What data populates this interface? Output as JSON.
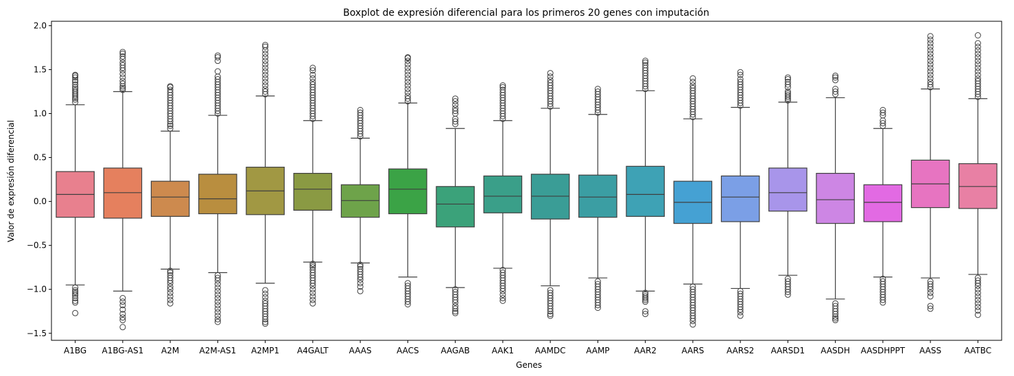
{
  "chart_data": {
    "type": "boxplot",
    "title": "Boxplot de expresión diferencial para los primeros 20 genes con imputación",
    "xlabel": "Genes",
    "ylabel": "Valor de expresión diferencial",
    "ylim": [
      -1.58,
      2.05
    ],
    "yticks": [
      -1.5,
      -1.0,
      -0.5,
      0.0,
      0.5,
      1.0,
      1.5,
      2.0
    ],
    "ytick_labels": [
      "−1.5",
      "−1.0",
      "−0.5",
      "0.0",
      "0.5",
      "1.0",
      "1.5",
      "2.0"
    ],
    "grid": false,
    "legend": "none",
    "categories": [
      "A1BG",
      "A1BG-AS1",
      "A2M",
      "A2M-AS1",
      "A2MP1",
      "A4GALT",
      "AAAS",
      "AACS",
      "AAGAB",
      "AAK1",
      "AAMDC",
      "AAMP",
      "AAR2",
      "AARS",
      "AARS2",
      "AARSD1",
      "AASDH",
      "AASDHPPT",
      "AASS",
      "AATBC"
    ],
    "colors": [
      "#e8808e",
      "#e5805e",
      "#cd8a4e",
      "#b98e3f",
      "#a19843",
      "#8a9a43",
      "#6ea34a",
      "#3ba346",
      "#3ba27a",
      "#3a9f89",
      "#3a9d96",
      "#3b9ea3",
      "#3ea2b5",
      "#45a1d3",
      "#7b9fe6",
      "#a895ea",
      "#cd86e4",
      "#e26ae3",
      "#e774c1",
      "#e880a4"
    ],
    "boxes": [
      {
        "q1": -0.18,
        "median": 0.08,
        "q3": 0.34,
        "whislo": -0.95,
        "whishi": 1.1,
        "fliers_high": [
          1.13,
          1.16,
          1.18,
          1.2,
          1.22,
          1.24,
          1.26,
          1.28,
          1.3,
          1.33,
          1.36,
          1.38,
          1.41,
          1.43,
          1.44
        ],
        "fliers_low": [
          -0.98,
          -1.01,
          -1.03,
          -1.05,
          -1.07,
          -1.1,
          -1.13,
          -1.15,
          -1.27
        ]
      },
      {
        "q1": -0.19,
        "median": 0.1,
        "q3": 0.38,
        "whislo": -1.02,
        "whishi": 1.25,
        "fliers_high": [
          1.27,
          1.29,
          1.31,
          1.34,
          1.37,
          1.41,
          1.45,
          1.49,
          1.52,
          1.55,
          1.58,
          1.62,
          1.65,
          1.68,
          1.7
        ],
        "fliers_low": [
          -1.1,
          -1.14,
          -1.18,
          -1.23,
          -1.28,
          -1.32,
          -1.35,
          -1.43
        ]
      },
      {
        "q1": -0.17,
        "median": 0.05,
        "q3": 0.23,
        "whislo": -0.77,
        "whishi": 0.8,
        "fliers_high": [
          0.83,
          0.86,
          0.88,
          0.91,
          0.94,
          0.97,
          1.0,
          1.03,
          1.06,
          1.09,
          1.12,
          1.15,
          1.18,
          1.21,
          1.24,
          1.27,
          1.3,
          1.31
        ],
        "fliers_low": [
          -0.79,
          -0.81,
          -0.84,
          -0.87,
          -0.9,
          -0.93,
          -0.97,
          -1.0,
          -1.04,
          -1.08,
          -1.12,
          -1.16
        ]
      },
      {
        "q1": -0.14,
        "median": 0.03,
        "q3": 0.31,
        "whislo": -0.81,
        "whishi": 0.98,
        "fliers_high": [
          1.0,
          1.03,
          1.06,
          1.09,
          1.12,
          1.15,
          1.18,
          1.21,
          1.24,
          1.27,
          1.3,
          1.33,
          1.36,
          1.39,
          1.42,
          1.48,
          1.6,
          1.64,
          1.66
        ],
        "fliers_low": [
          -0.84,
          -0.87,
          -0.9,
          -0.94,
          -0.98,
          -1.02,
          -1.06,
          -1.1,
          -1.14,
          -1.18,
          -1.22,
          -1.26,
          -1.3,
          -1.34,
          -1.37
        ]
      },
      {
        "q1": -0.15,
        "median": 0.12,
        "q3": 0.39,
        "whislo": -0.93,
        "whishi": 1.2,
        "fliers_high": [
          1.22,
          1.25,
          1.28,
          1.32,
          1.36,
          1.4,
          1.44,
          1.48,
          1.52,
          1.56,
          1.6,
          1.64,
          1.68,
          1.72,
          1.76,
          1.78
        ],
        "fliers_low": [
          -1.01,
          -1.05,
          -1.09,
          -1.13,
          -1.16,
          -1.19,
          -1.22,
          -1.25,
          -1.28,
          -1.31,
          -1.34,
          -1.37,
          -1.39
        ]
      },
      {
        "q1": -0.1,
        "median": 0.14,
        "q3": 0.32,
        "whislo": -0.69,
        "whishi": 0.92,
        "fliers_high": [
          0.94,
          0.97,
          1.0,
          1.03,
          1.06,
          1.09,
          1.12,
          1.15,
          1.18,
          1.21,
          1.24,
          1.27,
          1.3,
          1.33,
          1.36,
          1.4,
          1.44,
          1.49,
          1.52
        ],
        "fliers_low": [
          -0.71,
          -0.73,
          -0.75,
          -0.78,
          -0.81,
          -0.84,
          -0.87,
          -0.9,
          -0.93,
          -0.96,
          -1.0,
          -1.04,
          -1.08,
          -1.12,
          -1.16
        ]
      },
      {
        "q1": -0.18,
        "median": 0.01,
        "q3": 0.19,
        "whislo": -0.7,
        "whishi": 0.72,
        "fliers_high": [
          0.74,
          0.77,
          0.8,
          0.83,
          0.86,
          0.89,
          0.92,
          0.95,
          0.98,
          1.01,
          1.04
        ],
        "fliers_low": [
          -0.72,
          -0.74,
          -0.77,
          -0.8,
          -0.83,
          -0.86,
          -0.89,
          -0.93,
          -0.97,
          -1.02
        ]
      },
      {
        "q1": -0.14,
        "median": 0.14,
        "q3": 0.37,
        "whislo": -0.86,
        "whishi": 1.12,
        "fliers_high": [
          1.14,
          1.17,
          1.2,
          1.24,
          1.28,
          1.32,
          1.36,
          1.4,
          1.44,
          1.48,
          1.52,
          1.56,
          1.6,
          1.63,
          1.64
        ],
        "fliers_low": [
          -0.93,
          -0.96,
          -0.99,
          -1.02,
          -1.05,
          -1.08,
          -1.11,
          -1.14,
          -1.17
        ]
      },
      {
        "q1": -0.29,
        "median": -0.03,
        "q3": 0.17,
        "whislo": -0.98,
        "whishi": 0.83,
        "fliers_high": [
          0.88,
          0.91,
          0.94,
          1.0,
          1.03,
          1.06,
          1.1,
          1.14,
          1.17
        ],
        "fliers_low": [
          -1.0,
          -1.03,
          -1.06,
          -1.09,
          -1.12,
          -1.15,
          -1.19,
          -1.22,
          -1.25,
          -1.27
        ]
      },
      {
        "q1": -0.13,
        "median": 0.06,
        "q3": 0.29,
        "whislo": -0.76,
        "whishi": 0.92,
        "fliers_high": [
          0.94,
          0.97,
          1.0,
          1.03,
          1.06,
          1.09,
          1.12,
          1.15,
          1.18,
          1.21,
          1.24,
          1.27,
          1.3,
          1.32
        ],
        "fliers_low": [
          -0.78,
          -0.81,
          -0.84,
          -0.87,
          -0.9,
          -0.93,
          -0.96,
          -0.99,
          -1.02,
          -1.06,
          -1.1,
          -1.13
        ]
      },
      {
        "q1": -0.2,
        "median": 0.06,
        "q3": 0.31,
        "whislo": -0.96,
        "whishi": 1.06,
        "fliers_high": [
          1.08,
          1.11,
          1.14,
          1.17,
          1.2,
          1.23,
          1.26,
          1.29,
          1.32,
          1.35,
          1.38,
          1.42,
          1.46
        ],
        "fliers_low": [
          -1.01,
          -1.04,
          -1.07,
          -1.1,
          -1.13,
          -1.16,
          -1.19,
          -1.22,
          -1.25,
          -1.28,
          -1.3
        ]
      },
      {
        "q1": -0.18,
        "median": 0.05,
        "q3": 0.3,
        "whislo": -0.87,
        "whishi": 0.99,
        "fliers_high": [
          1.01,
          1.04,
          1.07,
          1.1,
          1.13,
          1.16,
          1.19,
          1.22,
          1.25,
          1.28
        ],
        "fliers_low": [
          -0.91,
          -0.94,
          -0.97,
          -1.0,
          -1.03,
          -1.06,
          -1.09,
          -1.12,
          -1.15,
          -1.18,
          -1.21
        ]
      },
      {
        "q1": -0.17,
        "median": 0.08,
        "q3": 0.4,
        "whislo": -1.02,
        "whishi": 1.26,
        "fliers_high": [
          1.28,
          1.31,
          1.34,
          1.37,
          1.4,
          1.43,
          1.46,
          1.49,
          1.52,
          1.55,
          1.58,
          1.6
        ],
        "fliers_low": [
          -1.04,
          -1.06,
          -1.08,
          -1.1,
          -1.12,
          -1.14,
          -1.25,
          -1.28
        ]
      },
      {
        "q1": -0.25,
        "median": -0.01,
        "q3": 0.23,
        "whislo": -0.94,
        "whishi": 0.94,
        "fliers_high": [
          0.96,
          0.99,
          1.02,
          1.05,
          1.08,
          1.11,
          1.14,
          1.17,
          1.2,
          1.23,
          1.26,
          1.29,
          1.32,
          1.36,
          1.4
        ],
        "fliers_low": [
          -0.97,
          -1.0,
          -1.03,
          -1.06,
          -1.09,
          -1.12,
          -1.15,
          -1.18,
          -1.21,
          -1.24,
          -1.27,
          -1.3,
          -1.33,
          -1.36,
          -1.4
        ]
      },
      {
        "q1": -0.23,
        "median": 0.05,
        "q3": 0.29,
        "whislo": -0.99,
        "whishi": 1.07,
        "fliers_high": [
          1.09,
          1.12,
          1.15,
          1.18,
          1.21,
          1.24,
          1.27,
          1.3,
          1.33,
          1.36,
          1.39,
          1.44,
          1.47
        ],
        "fliers_low": [
          -1.02,
          -1.05,
          -1.08,
          -1.11,
          -1.14,
          -1.17,
          -1.2,
          -1.23,
          -1.26,
          -1.3
        ]
      },
      {
        "q1": -0.11,
        "median": 0.1,
        "q3": 0.38,
        "whislo": -0.84,
        "whishi": 1.13,
        "fliers_high": [
          1.15,
          1.17,
          1.19,
          1.21,
          1.23,
          1.25,
          1.3,
          1.33,
          1.36,
          1.39,
          1.41
        ],
        "fliers_low": [
          -0.88,
          -0.91,
          -0.94,
          -0.97,
          -1.0,
          -1.03,
          -1.06
        ]
      },
      {
        "q1": -0.25,
        "median": 0.02,
        "q3": 0.32,
        "whislo": -1.11,
        "whishi": 1.18,
        "fliers_high": [
          1.22,
          1.25,
          1.28,
          1.38,
          1.41,
          1.43
        ],
        "fliers_low": [
          -1.16,
          -1.19,
          -1.22,
          -1.25,
          -1.28,
          -1.31,
          -1.33,
          -1.35
        ]
      },
      {
        "q1": -0.23,
        "median": -0.01,
        "q3": 0.19,
        "whislo": -0.86,
        "whishi": 0.83,
        "fliers_high": [
          0.86,
          0.89,
          0.92,
          0.98,
          1.01,
          1.04
        ],
        "fliers_low": [
          -0.88,
          -0.91,
          -0.94,
          -0.97,
          -1.0,
          -1.03,
          -1.06,
          -1.09,
          -1.12,
          -1.15
        ]
      },
      {
        "q1": -0.07,
        "median": 0.2,
        "q3": 0.47,
        "whislo": -0.87,
        "whishi": 1.28,
        "fliers_high": [
          1.3,
          1.33,
          1.36,
          1.4,
          1.44,
          1.48,
          1.52,
          1.56,
          1.6,
          1.64,
          1.68,
          1.72,
          1.76,
          1.8,
          1.84,
          1.88
        ],
        "fliers_low": [
          -0.91,
          -0.94,
          -0.97,
          -1.0,
          -1.04,
          -1.08,
          -1.19,
          -1.22
        ]
      },
      {
        "q1": -0.08,
        "median": 0.17,
        "q3": 0.43,
        "whislo": -0.83,
        "whishi": 1.17,
        "fliers_high": [
          1.19,
          1.22,
          1.25,
          1.28,
          1.31,
          1.34,
          1.37,
          1.4,
          1.44,
          1.48,
          1.52,
          1.56,
          1.6,
          1.64,
          1.68,
          1.72,
          1.76,
          1.8,
          1.89
        ],
        "fliers_low": [
          -0.87,
          -0.9,
          -0.93,
          -0.96,
          -1.0,
          -1.04,
          -1.08,
          -1.12,
          -1.16,
          -1.2,
          -1.24,
          -1.29
        ]
      }
    ]
  }
}
